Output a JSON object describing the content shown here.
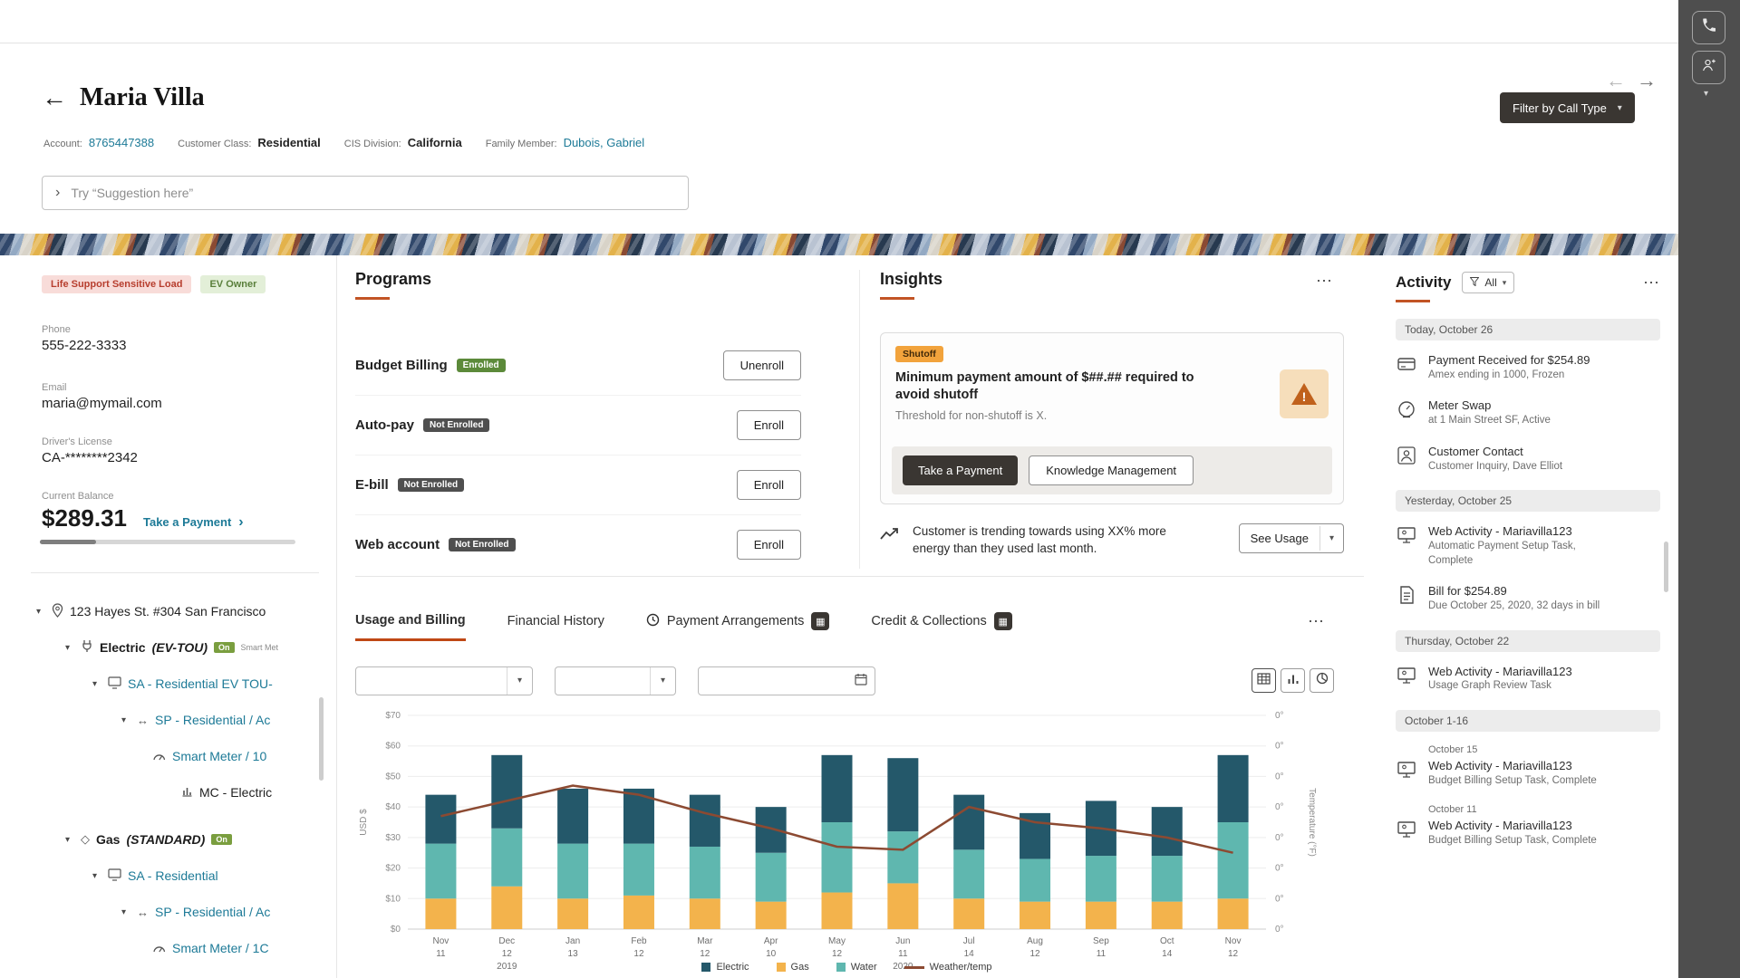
{
  "icons": {
    "back": "←",
    "forward": "→",
    "overflow": "⋯",
    "chevron_down": "▾",
    "search_chevron": "›",
    "link_chevron": "›",
    "grid_badge": "▦",
    "gas_glyph": "◇",
    "sp_glyph": "↔"
  },
  "colors": {
    "accent_orange": "#c25425",
    "tab_underline": "#bf4815",
    "link": "#1d7a97",
    "bar_electric": "#24586a",
    "bar_water": "#5fb7af",
    "bar_gas": "#f3b34c",
    "weather_line": "#8c4a32",
    "rail_background": "#4e4e4e"
  },
  "header": {
    "title": "Maria Villa",
    "account_label": "Account:",
    "account": "8765447388",
    "class_label": "Customer Class:",
    "class": "Residential",
    "division_label": "CIS Division:",
    "division": "California",
    "family_label": "Family Member:",
    "family": "Dubois, Gabriel",
    "search_placeholder": "Try “Suggestion here”",
    "filter_button": "Filter by Call Type"
  },
  "customer": {
    "life_support_badge": "Life Support Sensitive Load",
    "ev_owner_badge": "EV Owner",
    "phone_label": "Phone",
    "phone": "555-222-3333",
    "email_label": "Email",
    "email": "maria@mymail.com",
    "license_label": "Driver's License",
    "license": "CA-********2342",
    "balance_label": "Current Balance",
    "balance": "$289.31",
    "take_payment": "Take a Payment"
  },
  "premises": {
    "address": "123 Hayes St. #304 San Francisco",
    "electric_name": "Electric",
    "electric_detail": "(EV-TOU)",
    "electric_badge": "On",
    "electric_suffix": "Smart Met",
    "electric_sa": "SA - Residential EV TOU-",
    "electric_sp": "SP - Residential / Ac",
    "electric_meter": "Smart Meter / 10",
    "electric_mc": "MC - Electric",
    "gas_name": "Gas",
    "gas_detail": "(STANDARD)",
    "gas_badge": "On",
    "gas_sa": "SA - Residential",
    "gas_sp": "SP - Residential / Ac",
    "gas_meter": "Smart Meter / 1C"
  },
  "programs": {
    "title": "Programs",
    "rows": [
      {
        "name": "Budget Billing",
        "status": "Enrolled",
        "action": "Unenroll"
      },
      {
        "name": "Auto-pay",
        "status": "Not Enrolled",
        "action": "Enroll"
      },
      {
        "name": "E-bill",
        "status": "Not Enrolled",
        "action": "Enroll"
      },
      {
        "name": "Web account",
        "status": "Not Enrolled",
        "action": "Enroll"
      }
    ]
  },
  "insights": {
    "title": "Insights",
    "alert": {
      "tag": "Shutoff",
      "message": "Minimum payment amount of $##.## required to avoid shutoff",
      "detail": "Threshold for non-shutoff is X.",
      "primary_action": "Take a Payment",
      "secondary_action": "Knowledge Management"
    },
    "trend": {
      "text": "Customer is trending towards using XX% more energy than they used last month.",
      "action": "See Usage"
    }
  },
  "tabs": {
    "usage": "Usage and Billing",
    "financial": "Financial History",
    "arrangements": "Payment Arrangements",
    "credit": "Credit & Collections"
  },
  "chart_data": {
    "type": "bar",
    "subtype": "stacked-bars-with-line",
    "months": [
      "Nov",
      "Dec",
      "Jan",
      "Feb",
      "Mar",
      "Apr",
      "May",
      "Jun",
      "Jul",
      "Aug",
      "Sep",
      "Oct",
      "Nov"
    ],
    "days": [
      "11",
      "12",
      "13",
      "12",
      "12",
      "10",
      "12",
      "11",
      "14",
      "12",
      "11",
      "14",
      "12"
    ],
    "year_labels": [
      {
        "label": "2019",
        "index": 1
      },
      {
        "label": "2020",
        "index": 7
      }
    ],
    "series": [
      {
        "name": "Gas",
        "type": "bar",
        "color": "#f3b34c",
        "values": [
          10,
          14,
          10,
          11,
          10,
          9,
          12,
          15,
          10,
          9,
          9,
          9,
          10
        ]
      },
      {
        "name": "Water",
        "type": "bar",
        "color": "#5fb7af",
        "values": [
          18,
          19,
          18,
          17,
          17,
          16,
          23,
          17,
          16,
          14,
          15,
          15,
          25
        ]
      },
      {
        "name": "Electric",
        "type": "bar",
        "color": "#24586a",
        "values": [
          16,
          24,
          18,
          18,
          17,
          15,
          22,
          24,
          18,
          15,
          18,
          16,
          22
        ]
      },
      {
        "name": "Weather/temp",
        "type": "line",
        "color": "#8c4a32",
        "values": [
          37,
          42,
          47,
          44,
          38,
          33,
          27,
          26,
          40,
          35,
          33,
          30,
          25
        ]
      }
    ],
    "ylabel": "USD $",
    "ylim": [
      0,
      70
    ],
    "y_ticks": [
      "$70",
      "$60",
      "$50",
      "$40",
      "$30",
      "$20",
      "$10",
      "$0"
    ],
    "right_axis_label": "Temperature (°F)",
    "right_ticks": [
      "0°",
      "0°",
      "0°",
      "0°",
      "0°",
      "0°",
      "0°",
      "0°"
    ],
    "grid": true,
    "legend_position": "bottom",
    "legend": [
      {
        "label": "Electric",
        "color": "#24586a",
        "line": false
      },
      {
        "label": "Gas",
        "color": "#f3b34c",
        "line": false
      },
      {
        "label": "Water",
        "color": "#5fb7af",
        "line": false
      },
      {
        "label": "Weather/temp",
        "color": "#8c4a32",
        "line": true
      }
    ]
  },
  "activity": {
    "title": "Activity",
    "filter_label": "All",
    "groups": [
      {
        "header": "Today, October 26",
        "items": [
          {
            "icon": "payment",
            "title": "Payment Received for $254.89",
            "sub": "Amex ending in 1000, Frozen"
          },
          {
            "icon": "meter",
            "title": "Meter Swap",
            "sub": "at 1 Main Street SF, Active"
          },
          {
            "icon": "customer",
            "title": "Customer Contact",
            "sub": "Customer Inquiry, Dave Elliot"
          }
        ]
      },
      {
        "header": "Yesterday, October 25",
        "items": [
          {
            "icon": "web",
            "title": "Web Activity - Mariavilla123",
            "sub": "Automatic Payment Setup Task,",
            "sub2": "Complete"
          },
          {
            "icon": "bill",
            "title": "Bill for $254.89",
            "sub": "Due October 25, 2020, 32 days in bill"
          }
        ]
      },
      {
        "header": "Thursday, October 22",
        "items": [
          {
            "icon": "web",
            "title": "Web Activity - Mariavilla123",
            "sub": "Usage Graph Review Task"
          }
        ]
      },
      {
        "header": "October 1-16",
        "items": [
          {
            "icon": "web",
            "date": "October 15",
            "title": "Web Activity - Mariavilla123",
            "sub": "Budget Billing Setup Task, Complete"
          },
          {
            "icon": "web",
            "date": "October 11",
            "title": "Web Activity - Mariavilla123",
            "sub": "Budget Billing Setup Task, Complete"
          }
        ]
      }
    ]
  }
}
